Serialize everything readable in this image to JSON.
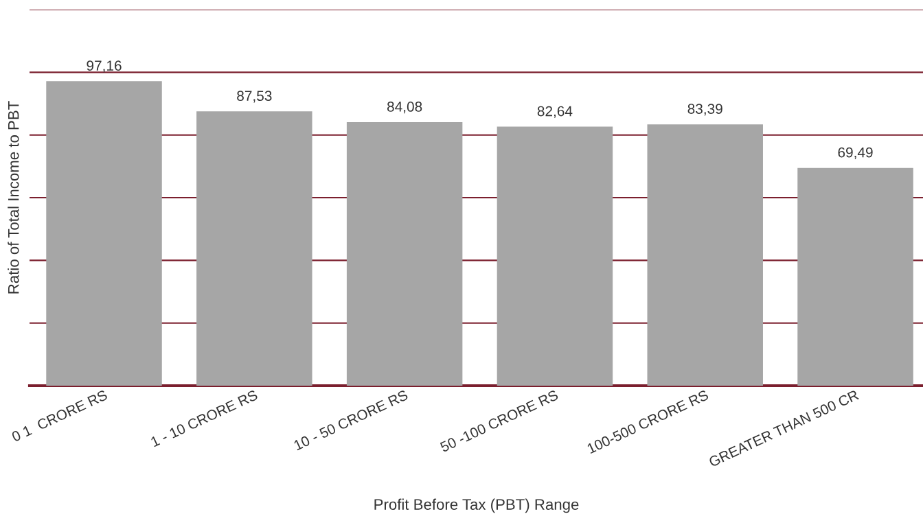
{
  "chart_data": {
    "type": "bar",
    "xlabel": "Profit Before Tax (PBT) Range",
    "ylabel": "Ratio of Total Income to PBT",
    "categories": [
      "0 1  CRORE RS",
      "1 - 10 CRORE RS",
      "10 - 50 CRORE RS",
      "50 -100 CRORE RS",
      "100-500 CRORE RS",
      "GREATER THAN 500 CR"
    ],
    "values": [
      97.16,
      87.53,
      84.08,
      82.64,
      83.39,
      69.49
    ],
    "value_labels": [
      "97,16",
      "87,53",
      "84,08",
      "82,64",
      "83,39",
      "69,49"
    ],
    "color": "#a6a6a6",
    "ylim": [
      0,
      120
    ],
    "yticks": [
      {
        "value": 0,
        "label": null
      },
      {
        "value": 20,
        "label": null
      },
      {
        "value": 40,
        "label": null
      },
      {
        "value": 60,
        "label": null
      },
      {
        "value": 80,
        "label": null
      },
      {
        "value": 100,
        "label": null
      },
      {
        "value": 120,
        "label": null
      }
    ],
    "grid": "y",
    "tick_labels": "x"
  }
}
